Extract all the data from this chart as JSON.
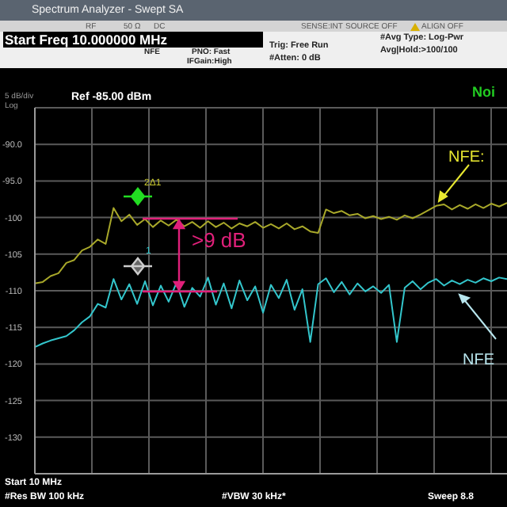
{
  "chart_data": {
    "type": "line",
    "categories": [
      null,
      null,
      null,
      null,
      null,
      null,
      null,
      null,
      null,
      null,
      null,
      null,
      null,
      null,
      null,
      null,
      null,
      null,
      null,
      null,
      null,
      null,
      null,
      null,
      null,
      null,
      null,
      null,
      null,
      null,
      null,
      null,
      null,
      null,
      null,
      null,
      null,
      null,
      null,
      null,
      null,
      null,
      null,
      null,
      null,
      null,
      null,
      null,
      null,
      null,
      null,
      null,
      null,
      null,
      null,
      null,
      null,
      null,
      null,
      null,
      null
    ],
    "series": [
      {
        "color": "#a8a82a",
        "values": [
          -109,
          -108.8,
          -108,
          -107.6,
          -106.2,
          -105.8,
          -104.5,
          -104,
          -103,
          -103.6,
          -98.7,
          -100.5,
          -99.6,
          -101,
          -100.2,
          -101.3,
          -100.4,
          -101.1,
          -100.3,
          -101.2,
          -100.6,
          -101.4,
          -100.5,
          -101.3,
          -100.7,
          -101.5,
          -100.8,
          -101.2,
          -100.6,
          -101.4,
          -100.9,
          -101.5,
          -100.8,
          -101.6,
          -101.2,
          -101.9,
          -102.1,
          -98.9,
          -99.4,
          -99.1,
          -99.7,
          -99.5,
          -100.1,
          -99.8,
          -100.2,
          -99.9,
          -100.3,
          -99.7,
          -100.1,
          -99.6,
          -99,
          -98.4,
          -98.2,
          -98.9,
          -98.3,
          -98.8,
          -98.2,
          -98.7,
          -98.1,
          -98.5,
          -98
        ]
      },
      {
        "color": "#33c6cc",
        "values": [
          -117.7,
          -117.2,
          -116.8,
          -116.5,
          -116.2,
          -115.4,
          -114.3,
          -113.5,
          -111.8,
          -112.3,
          -108.4,
          -111.2,
          -109.1,
          -111.8,
          -108.7,
          -112,
          -109.3,
          -111.5,
          -108.9,
          -112.2,
          -109.6,
          -110.8,
          -108.2,
          -111.9,
          -109,
          -112.4,
          -108.6,
          -111.3,
          -109.4,
          -113,
          -109.2,
          -111,
          -108.5,
          -112.6,
          -109.8,
          -117,
          -109.1,
          -108.3,
          -110.2,
          -108.8,
          -110.5,
          -109,
          -110.1,
          -109.4,
          -110.3,
          -109.2,
          -117,
          -109.6,
          -108.7,
          -109.8,
          -108.9,
          -108.4,
          -109.3,
          -108.6,
          -109.1,
          -108.5,
          -108.9,
          -108.3,
          -108.7,
          -108.2,
          -108.4
        ]
      }
    ],
    "ylim": [
      -135,
      -85
    ],
    "yticks": [
      {
        "value": -85,
        "label": null
      },
      {
        "value": -90,
        "label": "-90.0"
      },
      {
        "value": -95,
        "label": "-95.0"
      },
      -100,
      -105,
      -110,
      -115,
      -120,
      -125,
      -130,
      {
        "value": -135,
        "label": null
      }
    ],
    "grid": true,
    "marker": "none",
    "line_style": "solid",
    "tick_labels": "y",
    "annotations": [
      "Spectrum Analyzer - Swept SA",
      "RF",
      "50 Ω",
      "DC",
      "SENSE:INT",
      "SOURCE OFF",
      "ALIGN OFF",
      "Start Freq 10.000000 MHz",
      "NFE",
      "PNO: Fast",
      "IFGain:High",
      "Trig: Free Run",
      "#Atten: 0 dB",
      "#Avg Type: Log-Pwr",
      "Avg|Hold:>100/100",
      "5 dB/div",
      "Log",
      "Ref -85.00 dBm",
      "Noi",
      "2Δ1",
      "1",
      ">9 dB",
      "NFE:",
      "NFE",
      "Start 10 MHz",
      "#Res BW 100 kHz",
      "#VBW 30 kHz*",
      "Sweep 8.8"
    ]
  }
}
